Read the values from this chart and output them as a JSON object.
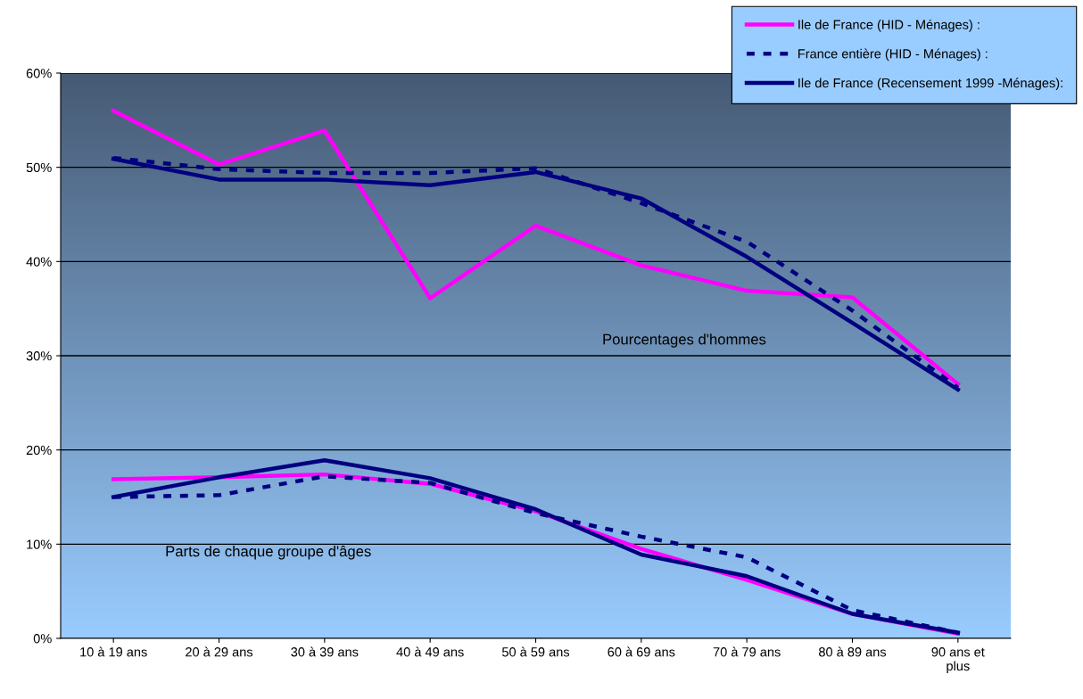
{
  "chart_data": {
    "type": "line",
    "categories": [
      "10 à 19 ans",
      "20 à 29 ans",
      "30 à 39 ans",
      "40 à 49 ans",
      "50 à 59 ans",
      "60 à 69 ans",
      "70 à 79 ans",
      "80 à 89 ans",
      "90 ans et\nplus"
    ],
    "series": [
      {
        "name": "Ile de France (HID - Ménages) :",
        "color": "#ff00ff",
        "line_style": "solid",
        "values": [
          56.0,
          50.3,
          53.9,
          36.1,
          43.8,
          39.6,
          36.9,
          36.2,
          27.0
        ]
      },
      {
        "name": "France entière (HID - Ménages) :",
        "color": "#000080",
        "line_style": "dashed",
        "values": [
          51.0,
          49.8,
          49.4,
          49.4,
          49.9,
          46.2,
          42.1,
          34.8,
          26.6
        ]
      },
      {
        "name": "Ile de France (Recensement 1999 -Ménages):",
        "color": "#000080",
        "line_style": "solid",
        "values": [
          50.9,
          48.7,
          48.7,
          48.1,
          49.5,
          46.7,
          40.5,
          33.5,
          26.4
        ]
      },
      {
        "color": "#ff00ff",
        "line_style": "solid",
        "values": [
          16.9,
          17.1,
          17.4,
          16.4,
          13.5,
          9.5,
          6.2,
          2.6,
          0.5
        ]
      },
      {
        "color": "#000080",
        "line_style": "dashed",
        "values": [
          15.0,
          15.2,
          17.2,
          16.5,
          13.3,
          10.8,
          8.6,
          3.0,
          0.6
        ]
      },
      {
        "color": "#000080",
        "line_style": "solid",
        "values": [
          15.0,
          17.1,
          18.9,
          17.0,
          13.7,
          8.9,
          6.6,
          2.6,
          0.6
        ]
      }
    ],
    "ylim": [
      0,
      60
    ],
    "yticks": [
      {
        "value": 0,
        "label": "0%"
      },
      {
        "value": 10,
        "label": "10%"
      },
      {
        "value": 20,
        "label": "20%"
      },
      {
        "value": 30,
        "label": "30%"
      },
      {
        "value": 40,
        "label": "40%"
      },
      {
        "value": 50,
        "label": "50%"
      },
      {
        "value": 60,
        "label": "60%"
      }
    ],
    "annotations": [
      "Pourcentages d'hommes",
      "Parts de chaque groupe d'âges"
    ],
    "grid": "y",
    "legend": "top right",
    "marker": "none"
  }
}
